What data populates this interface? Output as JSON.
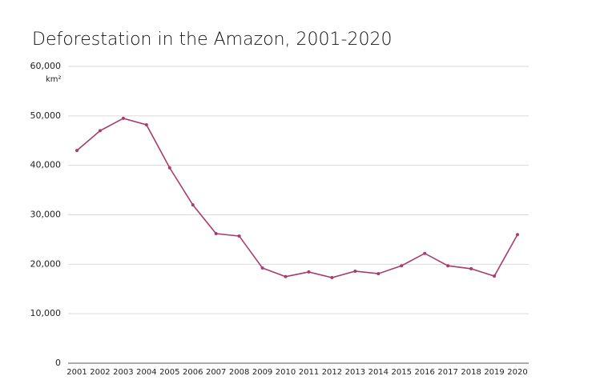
{
  "chart_data": {
    "type": "line",
    "title": "Deforestation in the Amazon, 2001-2020",
    "y_unit": "km²",
    "categories": [
      "2001",
      "2002",
      "2003",
      "2004",
      "2005",
      "2006",
      "2007",
      "2008",
      "2009",
      "2010",
      "2011",
      "2012",
      "2013",
      "2014",
      "2015",
      "2016",
      "2017",
      "2018",
      "2019",
      "2020"
    ],
    "values": [
      43000,
      47000,
      49500,
      48200,
      39500,
      32000,
      26200,
      25700,
      19250,
      17500,
      18450,
      17300,
      18600,
      18100,
      19700,
      22200,
      19700,
      19100,
      17600,
      26000
    ],
    "color": "#a63d6f",
    "ylim": [
      0,
      60000
    ],
    "yticks": [
      0,
      {
        "value": 10000,
        "label": "10,000"
      },
      {
        "value": 20000,
        "label": "20,000"
      },
      {
        "value": 30000,
        "label": "30,000"
      },
      {
        "value": 40000,
        "label": "40,000"
      },
      {
        "value": 50000,
        "label": "50,000"
      },
      {
        "value": 60000,
        "label": "60,000"
      }
    ],
    "grid": true
  }
}
